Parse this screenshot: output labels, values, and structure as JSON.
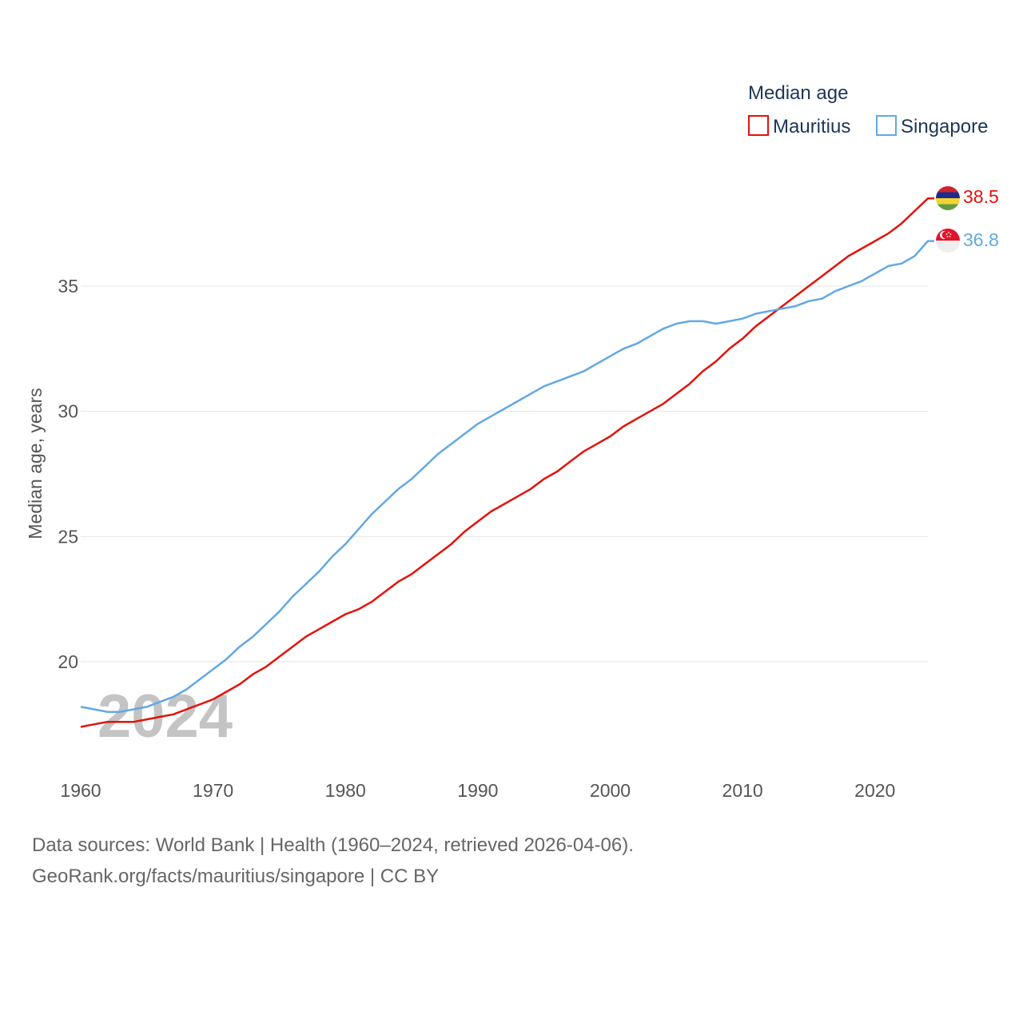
{
  "chart_data": {
    "type": "line",
    "legend_title": "Median age",
    "ylabel": "Median age, years",
    "xlabel": "",
    "watermark_year": "2024",
    "xlim": [
      1960,
      2024
    ],
    "ylim": [
      16.1,
      39
    ],
    "x_ticks": [
      1960,
      1970,
      1980,
      1990,
      2000,
      2010,
      2020
    ],
    "y_ticks": [
      20,
      25,
      30,
      35
    ],
    "legend_position": "top-right",
    "grid": true,
    "x": [
      1960,
      1961,
      1962,
      1963,
      1964,
      1965,
      1966,
      1967,
      1968,
      1969,
      1970,
      1971,
      1972,
      1973,
      1974,
      1975,
      1976,
      1977,
      1978,
      1979,
      1980,
      1981,
      1982,
      1983,
      1984,
      1985,
      1986,
      1987,
      1988,
      1989,
      1990,
      1991,
      1992,
      1993,
      1994,
      1995,
      1996,
      1997,
      1998,
      1999,
      2000,
      2001,
      2002,
      2003,
      2004,
      2005,
      2006,
      2007,
      2008,
      2009,
      2010,
      2011,
      2012,
      2013,
      2014,
      2015,
      2016,
      2017,
      2018,
      2019,
      2020,
      2021,
      2022,
      2023,
      2024
    ],
    "series": [
      {
        "name": "Mauritius",
        "color": "#e3120b",
        "end_label": "38.5",
        "values": [
          17.4,
          17.5,
          17.6,
          17.6,
          17.6,
          17.7,
          17.8,
          17.9,
          18.1,
          18.3,
          18.5,
          18.8,
          19.1,
          19.5,
          19.8,
          20.2,
          20.6,
          21.0,
          21.3,
          21.6,
          21.9,
          22.1,
          22.4,
          22.8,
          23.2,
          23.5,
          23.9,
          24.3,
          24.7,
          25.2,
          25.6,
          26.0,
          26.3,
          26.6,
          26.9,
          27.3,
          27.6,
          28.0,
          28.4,
          28.7,
          29.0,
          29.4,
          29.7,
          30.0,
          30.3,
          30.7,
          31.1,
          31.6,
          32.0,
          32.5,
          32.9,
          33.4,
          33.8,
          34.2,
          34.6,
          35.0,
          35.4,
          35.8,
          36.2,
          36.5,
          36.8,
          37.1,
          37.5,
          38.0,
          38.5
        ]
      },
      {
        "name": "Singapore",
        "color": "#62a8e5",
        "end_label": "36.8",
        "values": [
          18.2,
          18.1,
          18.0,
          18.0,
          18.1,
          18.2,
          18.4,
          18.6,
          18.9,
          19.3,
          19.7,
          20.1,
          20.6,
          21.0,
          21.5,
          22.0,
          22.6,
          23.1,
          23.6,
          24.2,
          24.7,
          25.3,
          25.9,
          26.4,
          26.9,
          27.3,
          27.8,
          28.3,
          28.7,
          29.1,
          29.5,
          29.8,
          30.1,
          30.4,
          30.7,
          31.0,
          31.2,
          31.4,
          31.6,
          31.9,
          32.2,
          32.5,
          32.7,
          33.0,
          33.3,
          33.5,
          33.6,
          33.6,
          33.5,
          33.6,
          33.7,
          33.9,
          34.0,
          34.1,
          34.2,
          34.4,
          34.5,
          34.8,
          35.0,
          35.2,
          35.5,
          35.8,
          35.9,
          36.2,
          36.8
        ]
      }
    ]
  },
  "footer": {
    "line1": "Data sources: World Bank | Health (1960–2024, retrieved 2026-04-06).",
    "line2": "GeoRank.org/facts/mauritius/singapore | CC BY"
  },
  "icons": {
    "mauritius": "mauritius-flag-icon",
    "singapore": "singapore-flag-icon"
  }
}
